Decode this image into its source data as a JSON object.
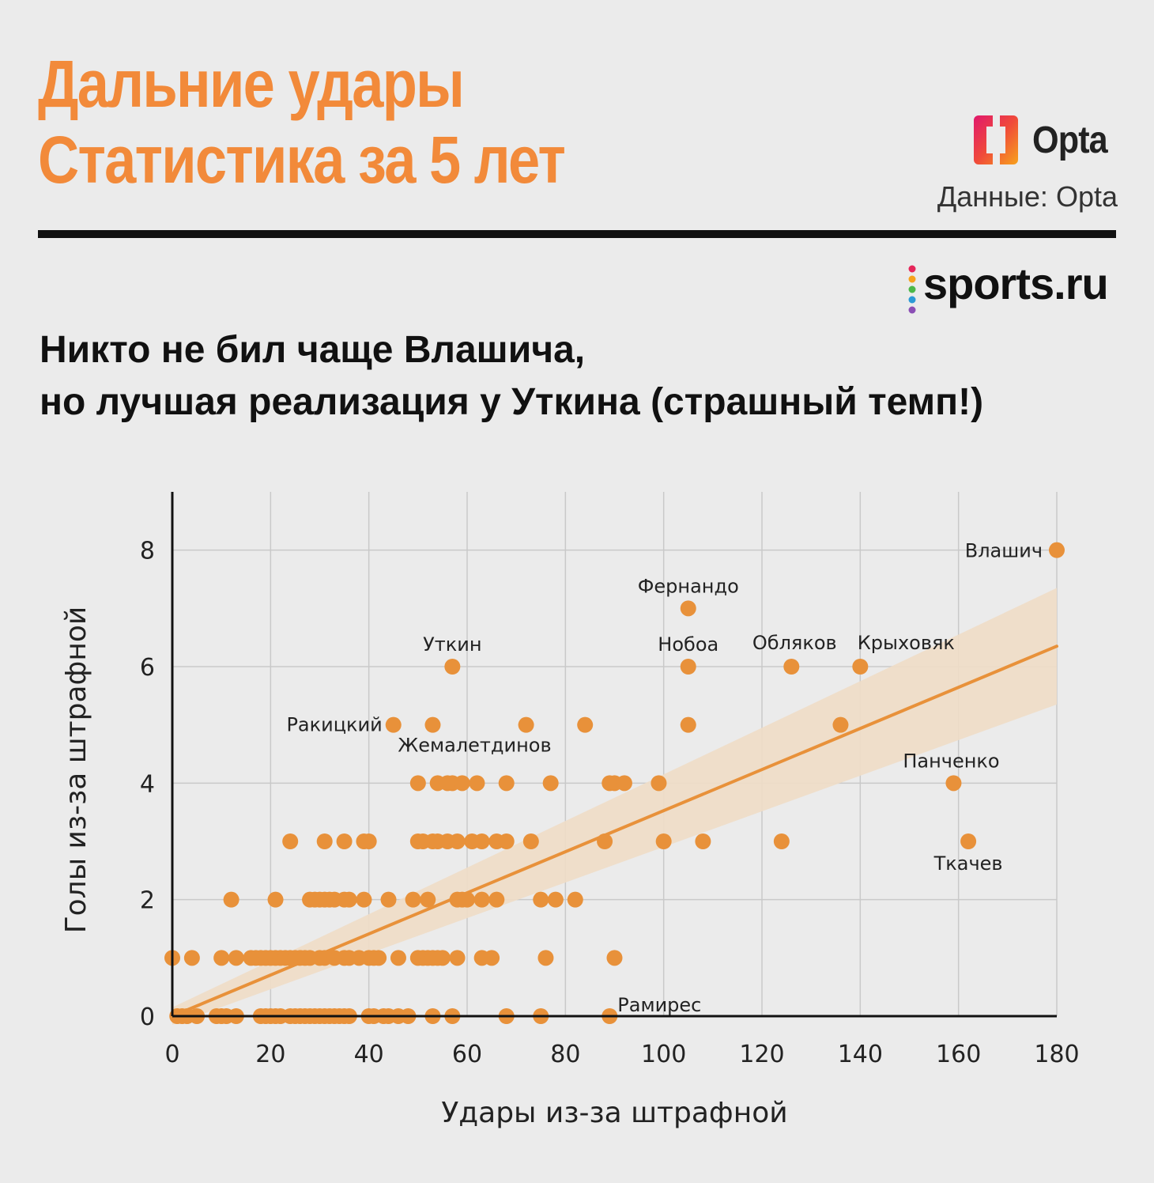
{
  "header": {
    "title_line1": "Дальние удары",
    "title_line2": "Статистика за 5 лет",
    "source_brand": "Opta",
    "source_text": "Данные: Opta",
    "site_brand": "sports.ru"
  },
  "subtitle": {
    "line1": "Никто не бил чаще Влашича,",
    "line2": "но лучшая реализация у Уткина (страшный темп!)"
  },
  "colors": {
    "accent": "#f28a3a",
    "point": "#e8913a",
    "band": "#f0ddc7",
    "grid": "#c9c9c9"
  },
  "chart_data": {
    "type": "scatter",
    "xlabel": "Удары из-за штрафной",
    "ylabel": "Голы из-за штрафной",
    "xlim": [
      0,
      180
    ],
    "ylim": [
      0,
      9
    ],
    "xticks": [
      0,
      20,
      40,
      60,
      80,
      100,
      120,
      140,
      160,
      180
    ],
    "yticks": [
      0,
      2,
      4,
      6,
      8
    ],
    "trend": {
      "x0": 0,
      "y0": 0.0,
      "x1": 180,
      "y1": 6.35,
      "band_half_width_start": 0.15,
      "band_half_width_end": 1.0
    },
    "labeled_points": [
      {
        "name": "Влашич",
        "x": 180,
        "y": 8
      },
      {
        "name": "Фернандо",
        "x": 105,
        "y": 7
      },
      {
        "name": "Уткин",
        "x": 57,
        "y": 6
      },
      {
        "name": "Нобоа",
        "x": 105,
        "y": 6
      },
      {
        "name": "Обляков",
        "x": 126,
        "y": 6
      },
      {
        "name": "Крыховяк",
        "x": 140,
        "y": 6
      },
      {
        "name": "Ракицкий",
        "x": 45,
        "y": 5
      },
      {
        "name": "Жемалетдинов",
        "x": 53,
        "y": 5
      },
      {
        "name": "Панченко",
        "x": 159,
        "y": 4
      },
      {
        "name": "Ткачев",
        "x": 162,
        "y": 3
      },
      {
        "name": "Рамирес",
        "x": 89,
        "y": 0
      }
    ],
    "points": [
      [
        72,
        5
      ],
      [
        84,
        5
      ],
      [
        105,
        5
      ],
      [
        136,
        5
      ],
      [
        50,
        4
      ],
      [
        54,
        4
      ],
      [
        56,
        4
      ],
      [
        57,
        4
      ],
      [
        59,
        4
      ],
      [
        62,
        4
      ],
      [
        68,
        4
      ],
      [
        77,
        4
      ],
      [
        89,
        4
      ],
      [
        90,
        4
      ],
      [
        92,
        4
      ],
      [
        99,
        4
      ],
      [
        24,
        3
      ],
      [
        31,
        3
      ],
      [
        35,
        3
      ],
      [
        39,
        3
      ],
      [
        40,
        3
      ],
      [
        50,
        3
      ],
      [
        51,
        3
      ],
      [
        53,
        3
      ],
      [
        54,
        3
      ],
      [
        56,
        3
      ],
      [
        58,
        3
      ],
      [
        61,
        3
      ],
      [
        63,
        3
      ],
      [
        66,
        3
      ],
      [
        68,
        3
      ],
      [
        73,
        3
      ],
      [
        88,
        3
      ],
      [
        100,
        3
      ],
      [
        108,
        3
      ],
      [
        124,
        3
      ],
      [
        12,
        2
      ],
      [
        21,
        2
      ],
      [
        28,
        2
      ],
      [
        29,
        2
      ],
      [
        30,
        2
      ],
      [
        31,
        2
      ],
      [
        32,
        2
      ],
      [
        33,
        2
      ],
      [
        35,
        2
      ],
      [
        36,
        2
      ],
      [
        39,
        2
      ],
      [
        44,
        2
      ],
      [
        49,
        2
      ],
      [
        52,
        2
      ],
      [
        58,
        2
      ],
      [
        59,
        2
      ],
      [
        60,
        2
      ],
      [
        63,
        2
      ],
      [
        66,
        2
      ],
      [
        75,
        2
      ],
      [
        78,
        2
      ],
      [
        82,
        2
      ],
      [
        0,
        1
      ],
      [
        4,
        1
      ],
      [
        10,
        1
      ],
      [
        13,
        1
      ],
      [
        16,
        1
      ],
      [
        17,
        1
      ],
      [
        18,
        1
      ],
      [
        19,
        1
      ],
      [
        20,
        1
      ],
      [
        21,
        1
      ],
      [
        22,
        1
      ],
      [
        23,
        1
      ],
      [
        24,
        1
      ],
      [
        25,
        1
      ],
      [
        26,
        1
      ],
      [
        27,
        1
      ],
      [
        28,
        1
      ],
      [
        30,
        1
      ],
      [
        31,
        1
      ],
      [
        33,
        1
      ],
      [
        35,
        1
      ],
      [
        36,
        1
      ],
      [
        38,
        1
      ],
      [
        40,
        1
      ],
      [
        41,
        1
      ],
      [
        42,
        1
      ],
      [
        46,
        1
      ],
      [
        50,
        1
      ],
      [
        51,
        1
      ],
      [
        52,
        1
      ],
      [
        53,
        1
      ],
      [
        54,
        1
      ],
      [
        55,
        1
      ],
      [
        58,
        1
      ],
      [
        63,
        1
      ],
      [
        65,
        1
      ],
      [
        76,
        1
      ],
      [
        90,
        1
      ],
      [
        1,
        0
      ],
      [
        2,
        0
      ],
      [
        3,
        0
      ],
      [
        5,
        0
      ],
      [
        9,
        0
      ],
      [
        10,
        0
      ],
      [
        11,
        0
      ],
      [
        13,
        0
      ],
      [
        18,
        0
      ],
      [
        19,
        0
      ],
      [
        20,
        0
      ],
      [
        21,
        0
      ],
      [
        22,
        0
      ],
      [
        24,
        0
      ],
      [
        25,
        0
      ],
      [
        26,
        0
      ],
      [
        27,
        0
      ],
      [
        28,
        0
      ],
      [
        29,
        0
      ],
      [
        30,
        0
      ],
      [
        31,
        0
      ],
      [
        32,
        0
      ],
      [
        33,
        0
      ],
      [
        34,
        0
      ],
      [
        35,
        0
      ],
      [
        36,
        0
      ],
      [
        40,
        0
      ],
      [
        41,
        0
      ],
      [
        43,
        0
      ],
      [
        44,
        0
      ],
      [
        46,
        0
      ],
      [
        48,
        0
      ],
      [
        53,
        0
      ],
      [
        57,
        0
      ],
      [
        68,
        0
      ],
      [
        75,
        0
      ]
    ]
  }
}
